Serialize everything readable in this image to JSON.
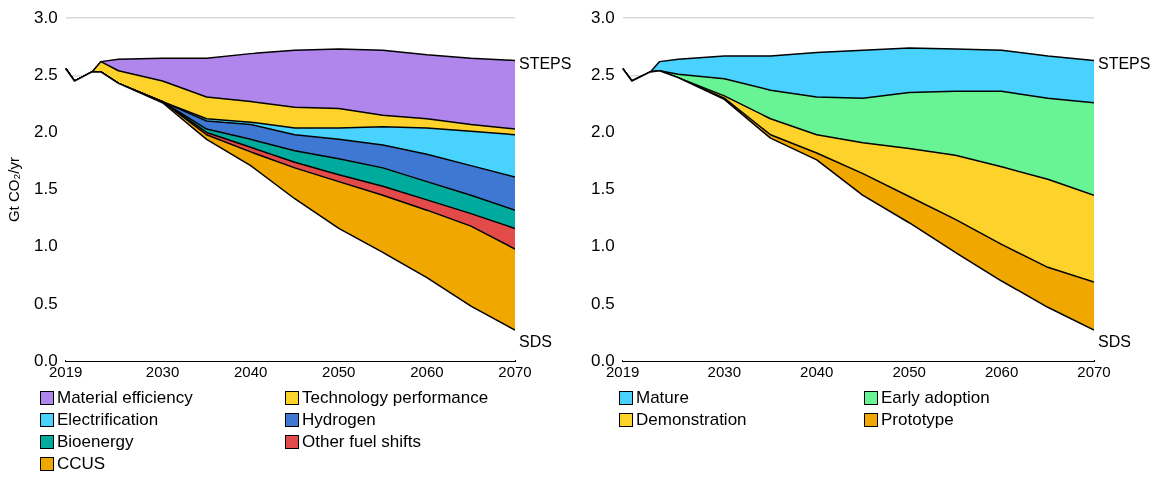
{
  "chart_data": [
    {
      "type": "area",
      "stacked": true,
      "ylabel": "Gt CO₂/yr",
      "x": [
        2019,
        2020,
        2022,
        2023,
        2025,
        2030,
        2035,
        2040,
        2045,
        2050,
        2055,
        2060,
        2065,
        2070
      ],
      "xlim": [
        2019,
        2070
      ],
      "xticks": [
        2019,
        2030,
        2040,
        2050,
        2060,
        2070
      ],
      "ylim": [
        0,
        3
      ],
      "yticks": [
        {
          "value": 0,
          "label": "0.0"
        },
        0.5,
        {
          "value": 1,
          "label": "1.0"
        },
        1.5,
        {
          "value": 2,
          "label": "2.0"
        },
        2.5,
        {
          "value": 3,
          "label": "3.0"
        }
      ],
      "grid": "y",
      "legend": "bottom",
      "annotations": [
        "STEPS"
      ],
      "series": [
        {
          "name": "SDS",
          "color": "#ffffff",
          "values": [
            2.56,
            2.45,
            2.53,
            2.53,
            2.43,
            2.26,
            1.94,
            1.71,
            1.42,
            1.16,
            0.95,
            0.73,
            0.48,
            0.27
          ]
        },
        {
          "name": "CCUS",
          "color": "#f0a800",
          "values": [
            0,
            0,
            0,
            0,
            0,
            0.01,
            0.04,
            0.12,
            0.27,
            0.41,
            0.5,
            0.59,
            0.7,
            0.71
          ]
        },
        {
          "name": "Other fuel shifts",
          "color": "#e34a4a",
          "values": [
            0,
            0,
            0,
            0,
            0,
            0,
            0.02,
            0.04,
            0.05,
            0.06,
            0.08,
            0.09,
            0.11,
            0.18
          ]
        },
        {
          "name": "Bioenergy",
          "color": "#00aa9c",
          "values": [
            0,
            0,
            0,
            0,
            0,
            0,
            0.03,
            0.07,
            0.1,
            0.14,
            0.16,
            0.16,
            0.16,
            0.16
          ]
        },
        {
          "name": "Hydrogen",
          "color": "#3f78d3",
          "values": [
            0,
            0,
            0,
            0,
            0,
            0,
            0.07,
            0.13,
            0.14,
            0.17,
            0.2,
            0.24,
            0.26,
            0.29
          ]
        },
        {
          "name": "Electrification",
          "color": "#48d2fd",
          "values": [
            0,
            0,
            0,
            0,
            0,
            0,
            0.02,
            0.02,
            0.06,
            0.1,
            0.16,
            0.23,
            0.3,
            0.37
          ]
        },
        {
          "name": "Technology performance",
          "color": "#fdd22b",
          "values": [
            0,
            0,
            0,
            0.09,
            0.11,
            0.18,
            0.19,
            0.18,
            0.18,
            0.17,
            0.1,
            0.08,
            0.06,
            0.05
          ]
        },
        {
          "name": "Material efficiency",
          "color": "#b085ec",
          "values": [
            0,
            0,
            0,
            0,
            0.1,
            0.2,
            0.34,
            0.42,
            0.5,
            0.52,
            0.57,
            0.56,
            0.58,
            0.6
          ]
        }
      ]
    },
    {
      "type": "area",
      "stacked": true,
      "x": [
        2019,
        2020,
        2022,
        2023,
        2025,
        2030,
        2035,
        2040,
        2045,
        2050,
        2055,
        2060,
        2065,
        2070
      ],
      "xlim": [
        2019,
        2070
      ],
      "xticks": [
        2019,
        2030,
        2040,
        2050,
        2060,
        2070
      ],
      "ylim": [
        0,
        3
      ],
      "yticks": [
        {
          "value": 0,
          "label": "0.0"
        },
        0.5,
        {
          "value": 1,
          "label": "1.0"
        },
        1.5,
        {
          "value": 2,
          "label": "2.0"
        },
        2.5,
        {
          "value": 3,
          "label": "3.0"
        }
      ],
      "grid": "y",
      "legend": "bottom",
      "annotations": [
        "STEPS"
      ],
      "series": [
        {
          "name": "SDS",
          "color": "#ffffff",
          "values": [
            2.56,
            2.45,
            2.53,
            2.54,
            2.48,
            2.29,
            1.95,
            1.76,
            1.45,
            1.21,
            0.95,
            0.7,
            0.47,
            0.27
          ]
        },
        {
          "name": "Prototype",
          "color": "#f0a800",
          "values": [
            0,
            0,
            0,
            0,
            0,
            0.01,
            0.03,
            0.06,
            0.19,
            0.23,
            0.29,
            0.32,
            0.35,
            0.42
          ]
        },
        {
          "name": "Demonstration",
          "color": "#fdd22b",
          "values": [
            0,
            0,
            0,
            0,
            0,
            0.02,
            0.14,
            0.16,
            0.27,
            0.42,
            0.56,
            0.68,
            0.77,
            0.76
          ]
        },
        {
          "name": "Early adoption",
          "color": "#68f394",
          "values": [
            0,
            0,
            0,
            0,
            0.03,
            0.15,
            0.25,
            0.33,
            0.39,
            0.49,
            0.56,
            0.66,
            0.71,
            0.81
          ]
        },
        {
          "name": "Mature",
          "color": "#48d2fd",
          "values": [
            0,
            0,
            0,
            0.08,
            0.13,
            0.2,
            0.3,
            0.39,
            0.42,
            0.39,
            0.37,
            0.36,
            0.37,
            0.37
          ]
        }
      ]
    }
  ]
}
